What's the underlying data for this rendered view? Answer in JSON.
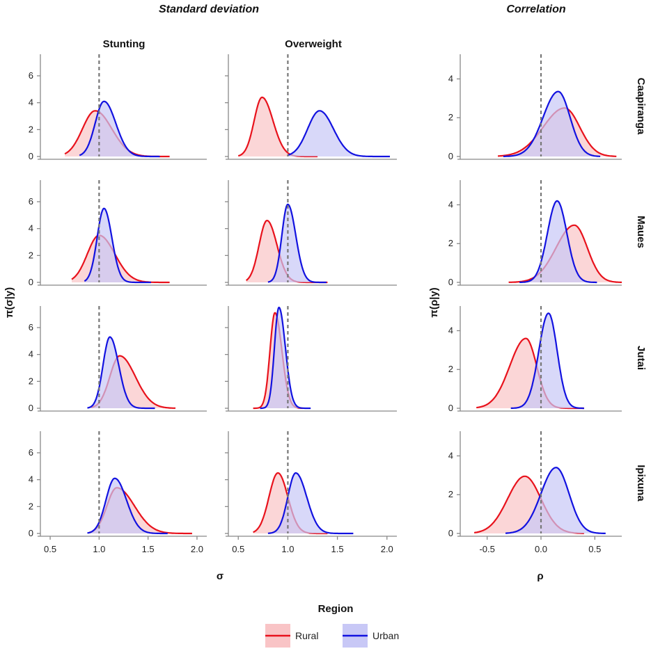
{
  "chart_data": {
    "type": "density",
    "titles": {
      "left": "Standard deviation",
      "right": "Correlation"
    },
    "columns": [
      "Stunting",
      "Overweight"
    ],
    "rows": [
      "Caapiranga",
      "Maues",
      "Jutai",
      "Ipixuna"
    ],
    "sigma_axis": {
      "xlabel": "σ",
      "ylabel": "π(σ|y)",
      "xlim": [
        0.4,
        2.1
      ],
      "xticks": [
        "0.5",
        "1.0",
        "1.5",
        "2.0"
      ],
      "xtick_values": [
        0.5,
        1.0,
        1.5,
        2.0
      ],
      "ylim": [
        0,
        7.5
      ],
      "yticks": [
        "0",
        "2",
        "4",
        "6"
      ],
      "ytick_values": [
        0,
        2,
        4,
        6
      ],
      "reference": 1.0
    },
    "rho_axis": {
      "xlabel": "ρ",
      "ylabel": "π(ρ|y)",
      "xlim": [
        -0.75,
        0.75
      ],
      "xticks": [
        "-0.5",
        "0.0",
        "0.5"
      ],
      "xtick_values": [
        -0.5,
        0.0,
        0.5
      ],
      "ylim": [
        0,
        5.2
      ],
      "yticks": [
        "0",
        "2",
        "4"
      ],
      "ytick_values": [
        0,
        2,
        4
      ],
      "reference": 0.0
    },
    "legend": {
      "title": "Region",
      "items": [
        {
          "name": "Rural",
          "color": "#e8121c",
          "fill": "#f9c4c6"
        },
        {
          "name": "Urban",
          "color": "#1212e0",
          "fill": "#c8c8f6"
        }
      ]
    },
    "series": {
      "Caapiranga": {
        "Stunting": {
          "Rural": {
            "mode": 0.96,
            "peak": 3.4,
            "left": 0.13,
            "right": 0.17,
            "range": [
              0.65,
              1.72
            ]
          },
          "Urban": {
            "mode": 1.05,
            "peak": 4.1,
            "left": 0.09,
            "right": 0.12,
            "range": [
              0.8,
              1.62
            ]
          }
        },
        "Overweight": {
          "Rural": {
            "mode": 0.74,
            "peak": 4.4,
            "left": 0.08,
            "right": 0.11,
            "range": [
              0.5,
              1.3
            ]
          },
          "Urban": {
            "mode": 1.32,
            "peak": 3.4,
            "left": 0.12,
            "right": 0.14,
            "range": [
              1.0,
              2.03
            ]
          }
        },
        "Correlation": {
          "Rural": {
            "mode": 0.22,
            "peak": 2.5,
            "left": 0.2,
            "right": 0.14,
            "range": [
              -0.4,
              0.7
            ]
          },
          "Urban": {
            "mode": 0.16,
            "peak": 3.35,
            "left": 0.14,
            "right": 0.11,
            "range": [
              -0.35,
              0.55
            ]
          }
        }
      },
      "Maues": {
        "Stunting": {
          "Rural": {
            "mode": 1.0,
            "peak": 3.5,
            "left": 0.12,
            "right": 0.16,
            "range": [
              0.72,
              1.72
            ]
          },
          "Urban": {
            "mode": 1.05,
            "peak": 5.5,
            "left": 0.07,
            "right": 0.08,
            "range": [
              0.85,
              1.53
            ]
          }
        },
        "Overweight": {
          "Rural": {
            "mode": 0.79,
            "peak": 4.6,
            "left": 0.08,
            "right": 0.1,
            "range": [
              0.58,
              1.4
            ]
          },
          "Urban": {
            "mode": 1.0,
            "peak": 5.8,
            "left": 0.06,
            "right": 0.08,
            "range": [
              0.8,
              1.39
            ]
          }
        },
        "Correlation": {
          "Rural": {
            "mode": 0.31,
            "peak": 2.95,
            "left": 0.17,
            "right": 0.12,
            "range": [
              -0.3,
              0.75
            ]
          },
          "Urban": {
            "mode": 0.15,
            "peak": 4.2,
            "left": 0.09,
            "right": 0.09,
            "range": [
              -0.2,
              0.52
            ]
          }
        }
      },
      "Jutai": {
        "Stunting": {
          "Rural": {
            "mode": 1.21,
            "peak": 3.9,
            "left": 0.1,
            "right": 0.16,
            "range": [
              0.92,
              1.78
            ]
          },
          "Urban": {
            "mode": 1.11,
            "peak": 5.3,
            "left": 0.07,
            "right": 0.09,
            "range": [
              0.88,
              1.57
            ]
          }
        },
        "Overweight": {
          "Rural": {
            "mode": 0.87,
            "peak": 7.1,
            "left": 0.05,
            "right": 0.07,
            "range": [
              0.65,
              1.15
            ]
          },
          "Urban": {
            "mode": 0.91,
            "peak": 7.5,
            "left": 0.045,
            "right": 0.065,
            "range": [
              0.72,
              1.23
            ]
          }
        },
        "Correlation": {
          "Rural": {
            "mode": -0.14,
            "peak": 3.6,
            "left": 0.15,
            "right": 0.1,
            "range": [
              -0.6,
              0.4
            ]
          },
          "Urban": {
            "mode": 0.07,
            "peak": 4.9,
            "left": 0.09,
            "right": 0.08,
            "range": [
              -0.28,
              0.4
            ]
          }
        }
      },
      "Ipixuna": {
        "Stunting": {
          "Rural": {
            "mode": 1.18,
            "peak": 3.4,
            "left": 0.1,
            "right": 0.18,
            "range": [
              0.9,
              1.95
            ]
          },
          "Urban": {
            "mode": 1.16,
            "peak": 4.1,
            "left": 0.09,
            "right": 0.12,
            "range": [
              0.88,
              1.7
            ]
          }
        },
        "Overweight": {
          "Rural": {
            "mode": 0.9,
            "peak": 4.5,
            "left": 0.09,
            "right": 0.1,
            "range": [
              0.65,
              1.4
            ]
          },
          "Urban": {
            "mode": 1.08,
            "peak": 4.5,
            "left": 0.08,
            "right": 0.11,
            "range": [
              0.8,
              1.66
            ]
          }
        },
        "Correlation": {
          "Rural": {
            "mode": -0.15,
            "peak": 2.95,
            "left": 0.16,
            "right": 0.15,
            "range": [
              -0.62,
              0.4
            ]
          },
          "Urban": {
            "mode": 0.14,
            "peak": 3.4,
            "left": 0.14,
            "right": 0.12,
            "range": [
              -0.33,
              0.6
            ]
          }
        }
      }
    }
  }
}
